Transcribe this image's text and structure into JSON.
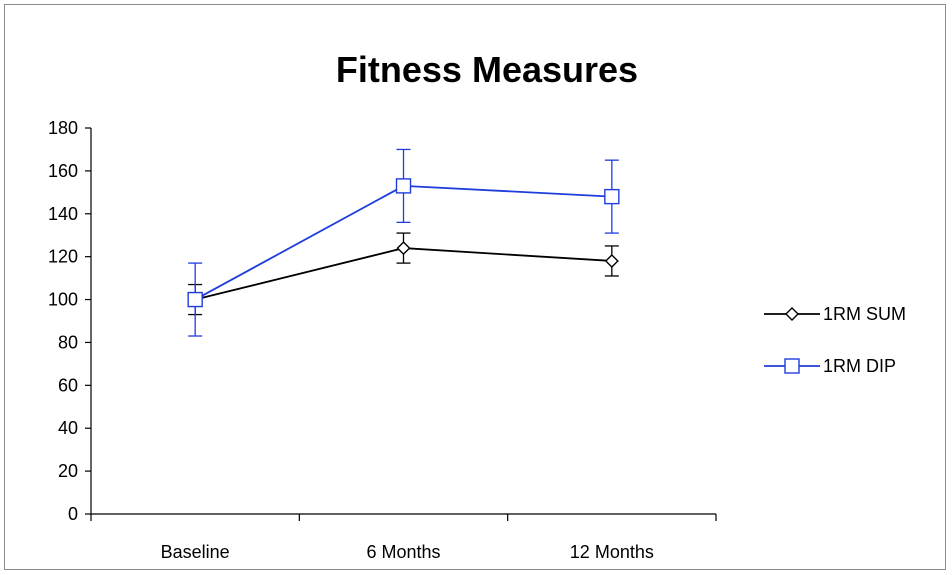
{
  "chart_data": {
    "type": "line",
    "title": "Fitness Measures",
    "categories": [
      "Baseline",
      "6 Months",
      "12 Months"
    ],
    "ylim": [
      0,
      180
    ],
    "yticks": [
      0,
      20,
      40,
      60,
      80,
      100,
      120,
      140,
      160,
      180
    ],
    "grid": false,
    "legend_position": "right",
    "series": [
      {
        "name": "1RM SUM",
        "color": "#000000",
        "marker": "diamond",
        "values": [
          100,
          124,
          118
        ],
        "error_low": [
          93,
          117,
          111
        ],
        "error_high": [
          107,
          131,
          125
        ]
      },
      {
        "name": "1RM DIP",
        "color": "#1f3ddb",
        "marker": "square",
        "values": [
          100,
          153,
          148
        ],
        "error_low": [
          83,
          136,
          131
        ],
        "error_high": [
          117,
          170,
          165
        ]
      }
    ]
  }
}
